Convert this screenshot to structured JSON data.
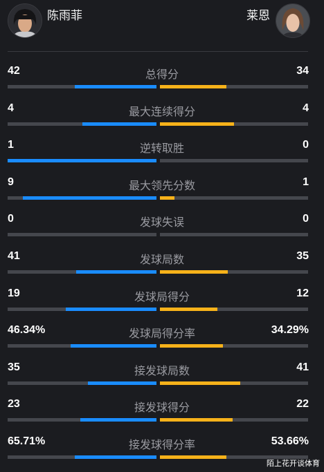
{
  "players": {
    "left": {
      "name": "陈雨菲",
      "avatar_icon": "player-portrait-icon"
    },
    "right": {
      "name": "莱恩",
      "avatar_icon": "player-portrait-icon"
    }
  },
  "colors": {
    "left_bar": "#1a8cff",
    "right_bar": "#f7b21a",
    "track": "#45474d",
    "background": "#1b1c20"
  },
  "stats": [
    {
      "label": "总得分",
      "left": "42",
      "right": "34",
      "left_fill": 0.55,
      "right_fill": 0.45
    },
    {
      "label": "最大连续得分",
      "left": "4",
      "right": "4",
      "left_fill": 0.5,
      "right_fill": 0.5
    },
    {
      "label": "逆转取胜",
      "left": "1",
      "right": "0",
      "left_fill": 1.0,
      "right_fill": 0.0
    },
    {
      "label": "最大领先分数",
      "left": "9",
      "right": "1",
      "left_fill": 0.9,
      "right_fill": 0.1
    },
    {
      "label": "发球失误",
      "left": "0",
      "right": "0",
      "left_fill": 0.0,
      "right_fill": 0.0
    },
    {
      "label": "发球局数",
      "left": "41",
      "right": "35",
      "left_fill": 0.54,
      "right_fill": 0.46
    },
    {
      "label": "发球局得分",
      "left": "19",
      "right": "12",
      "left_fill": 0.61,
      "right_fill": 0.39
    },
    {
      "label": "发球局得分率",
      "left": "46.34%",
      "right": "34.29%",
      "left_fill": 0.575,
      "right_fill": 0.425
    },
    {
      "label": "接发球局数",
      "left": "35",
      "right": "41",
      "left_fill": 0.46,
      "right_fill": 0.54
    },
    {
      "label": "接发球得分",
      "left": "23",
      "right": "22",
      "left_fill": 0.51,
      "right_fill": 0.49
    },
    {
      "label": "接发球得分率",
      "left": "65.71%",
      "right": "53.66%",
      "left_fill": 0.55,
      "right_fill": 0.45
    }
  ],
  "watermark": "陌上花开谈体育"
}
